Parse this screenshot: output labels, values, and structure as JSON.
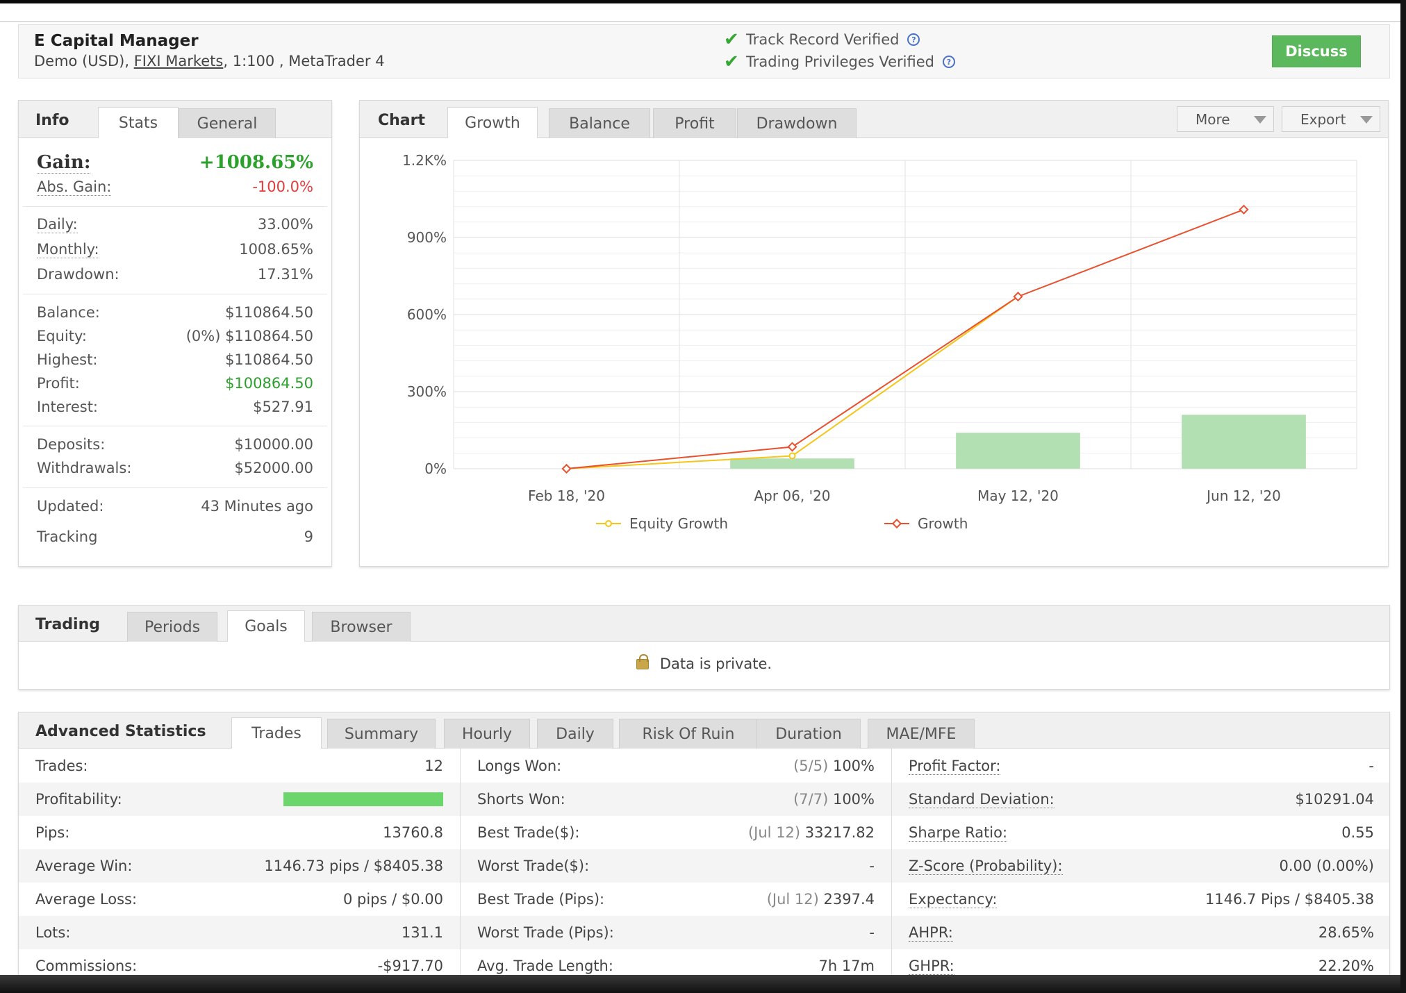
{
  "header": {
    "title": "E Capital Manager",
    "sub_prefix": "Demo (USD),",
    "broker": "FIXI Markets",
    "sub_suffix": ", 1:100 , MetaTrader 4",
    "verified": [
      "Track Record Verified",
      "Trading Privileges Verified"
    ],
    "discuss": "Discuss"
  },
  "info": {
    "tabs": [
      "Info",
      "Stats",
      "General"
    ],
    "gain_label": "Gain:",
    "gain_value": "+1008.65%",
    "absgain_label": "Abs. Gain:",
    "absgain_value": "-100.0%",
    "group1": [
      {
        "label": "Daily:",
        "value": "33.00%"
      },
      {
        "label": "Monthly:",
        "value": "1008.65%"
      },
      {
        "label": "Drawdown:",
        "value": "17.31%"
      }
    ],
    "group2": [
      {
        "label": "Balance:",
        "value": "$110864.50"
      },
      {
        "label": "Equity:",
        "value": "(0%) $110864.50"
      },
      {
        "label": "Highest:",
        "value": "$110864.50"
      },
      {
        "label": "Profit:",
        "value": "$100864.50"
      },
      {
        "label": "Interest:",
        "value": "$527.91"
      }
    ],
    "group3": [
      {
        "label": "Deposits:",
        "value": "$10000.00"
      },
      {
        "label": "Withdrawals:",
        "value": "$52000.00"
      }
    ],
    "group4": [
      {
        "label": "Updated:",
        "value": "43 Minutes ago"
      },
      {
        "label": "Tracking",
        "value": "9"
      }
    ]
  },
  "chart": {
    "tabs": [
      "Chart",
      "Growth",
      "Balance",
      "Profit",
      "Drawdown"
    ],
    "more": "More",
    "export": "Export"
  },
  "chart_data": {
    "type": "line",
    "x": [
      "Feb 18, '20",
      "Apr 06, '20",
      "May 12, '20",
      "Jun 12, '20"
    ],
    "ylim": [
      0,
      1200
    ],
    "yticks": [
      "0%",
      "300%",
      "600%",
      "900%",
      "1.2K%"
    ],
    "series": [
      {
        "name": "Equity Growth",
        "color": "#f5c518",
        "values": [
          0,
          50,
          670,
          null
        ]
      },
      {
        "name": "Growth",
        "color": "#e8502e",
        "values": [
          0,
          85,
          670,
          1008.65
        ]
      }
    ],
    "bars": {
      "color": "#b3e0b3",
      "values": [
        0,
        40,
        140,
        210
      ]
    },
    "grid": true,
    "legend": "bottom"
  },
  "trading": {
    "tabs": [
      "Trading",
      "Periods",
      "Goals",
      "Browser"
    ],
    "private": "Data is private."
  },
  "advanced": {
    "tabs": [
      "Advanced Statistics",
      "Trades",
      "Summary",
      "Hourly",
      "Daily",
      "Risk Of Ruin",
      "Duration",
      "MAE/MFE"
    ],
    "col1": [
      {
        "label": "Trades:",
        "value": "12"
      },
      {
        "label": "Profitability:",
        "value": ""
      },
      {
        "label": "Pips:",
        "value": "13760.8"
      },
      {
        "label": "Average Win:",
        "value": "1146.73 pips / $8405.38"
      },
      {
        "label": "Average Loss:",
        "value": "0 pips / $0.00"
      },
      {
        "label": "Lots:",
        "value": "131.1"
      },
      {
        "label": "Commissions:",
        "value": "-$917.70"
      }
    ],
    "profitability": 1.0,
    "col2": [
      {
        "label": "Longs Won:",
        "muted": "(5/5)",
        "value": "100%"
      },
      {
        "label": "Shorts Won:",
        "muted": "(7/7)",
        "value": "100%"
      },
      {
        "label": "Best Trade($):",
        "muted": "(Jul 12)",
        "value": "33217.82"
      },
      {
        "label": "Worst Trade($):",
        "muted": "",
        "value": "-"
      },
      {
        "label": "Best Trade (Pips):",
        "muted": "(Jul 12)",
        "value": "2397.4"
      },
      {
        "label": "Worst Trade (Pips):",
        "muted": "",
        "value": "-"
      },
      {
        "label": "Avg. Trade Length:",
        "muted": "",
        "value": "7h 17m"
      }
    ],
    "col3": [
      {
        "label": "Profit Factor:",
        "value": "-"
      },
      {
        "label": "Standard Deviation:",
        "value": "$10291.04"
      },
      {
        "label": "Sharpe Ratio:",
        "value": "0.55"
      },
      {
        "label": "Z-Score (Probability):",
        "value": "0.00 (0.00%)"
      },
      {
        "label": "Expectancy:",
        "value": "1146.7 Pips / $8405.38"
      },
      {
        "label": "AHPR:",
        "value": "28.65%"
      },
      {
        "label": "GHPR:",
        "value": "22.20%"
      }
    ]
  }
}
